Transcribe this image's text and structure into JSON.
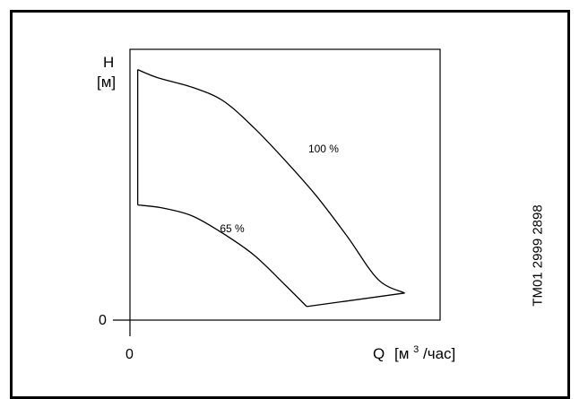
{
  "chart_data": {
    "type": "line",
    "title": "",
    "ylabel": "H",
    "yunit": "[м]",
    "xlabel": "Q",
    "xunit_prefix": "[м",
    "xunit_sup": "3",
    "xunit_suffix": "/час]",
    "x_tick_labels": [
      "0"
    ],
    "y_tick_labels": [
      "0"
    ],
    "xlim": [
      0,
      100
    ],
    "ylim": [
      0,
      100
    ],
    "grid": false,
    "series": [
      {
        "name": "100 %",
        "x": [
          2.5,
          9,
          20,
          30,
          40,
          50,
          60,
          70,
          80,
          88.6
        ],
        "y": [
          92.5,
          89.5,
          86,
          81,
          71,
          59,
          46,
          31,
          15,
          10
        ]
      },
      {
        "name": "65 %",
        "x": [
          2.5,
          10,
          20,
          30,
          40,
          50,
          57
        ],
        "y": [
          42.5,
          41.5,
          38.5,
          32,
          24,
          13,
          5
        ]
      }
    ],
    "boundary": [
      {
        "x": [
          2.5,
          2.5
        ],
        "y": [
          42.5,
          92.5
        ]
      },
      {
        "x": [
          57,
          88.6
        ],
        "y": [
          5,
          10
        ]
      }
    ]
  },
  "document_code": "TM01 2999 2898",
  "colors": {
    "line": "#000000",
    "background": "#ffffff"
  }
}
